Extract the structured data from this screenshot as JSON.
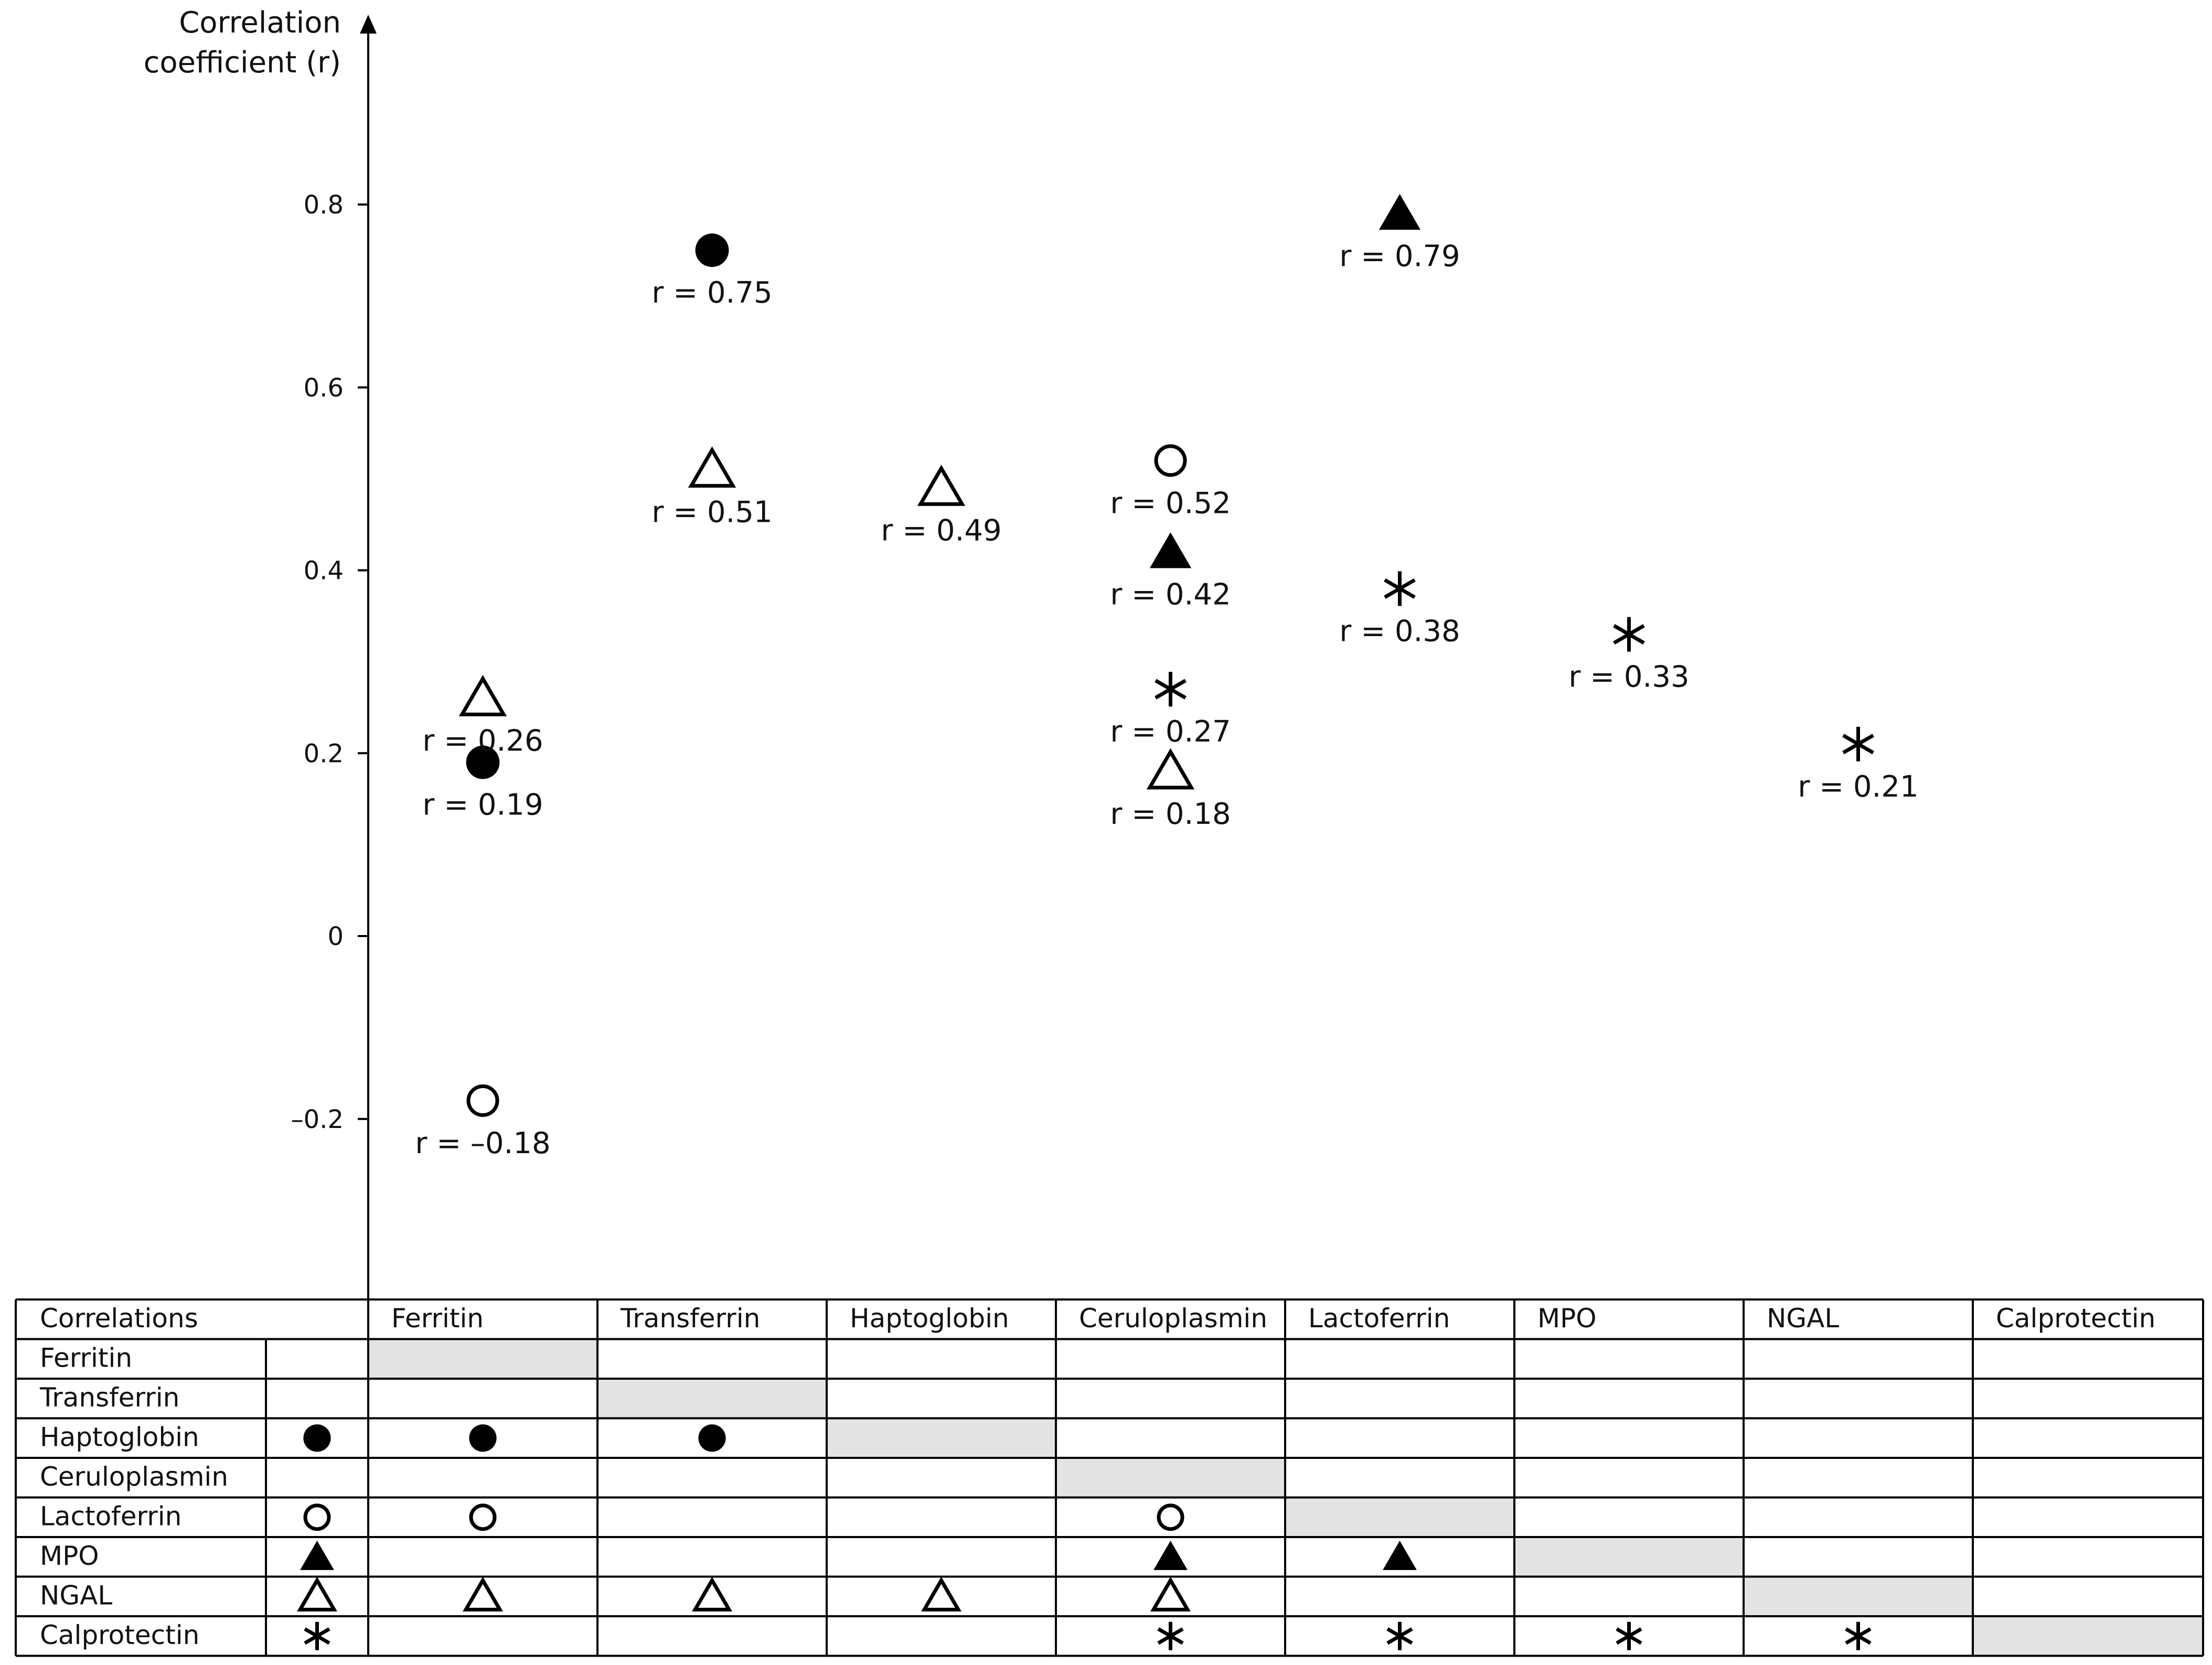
{
  "chart_data": {
    "type": "scatter",
    "ylabel": [
      "Correlation",
      "coefficient (r)"
    ],
    "ylim": [
      -0.4,
      1.0
    ],
    "yticks": [
      {
        "value": 0.8,
        "label": "0.8"
      },
      {
        "value": 0.6,
        "label": "0.6"
      },
      {
        "value": 0.4,
        "label": "0.4"
      },
      {
        "value": 0.2,
        "label": "0.2"
      },
      {
        "value": 0,
        "label": "0"
      },
      {
        "value": -0.2,
        "label": "–0.2"
      }
    ],
    "columns": [
      "Ferritin",
      "Transferrin",
      "Haptoglobin",
      "Ceruloplasmin",
      "Lactoferrin",
      "MPO",
      "NGAL",
      "Calprotectin"
    ],
    "rows": [
      "Ferritin",
      "Transferrin",
      "Haptoglobin",
      "Ceruloplasmin",
      "Lactoferrin",
      "MPO",
      "NGAL",
      "Calprotectin"
    ],
    "series": [
      {
        "name": "Haptoglobin",
        "marker": "filled-circle",
        "row": 2
      },
      {
        "name": "Lactoferrin",
        "marker": "open-circle",
        "row": 4
      },
      {
        "name": "MPO",
        "marker": "filled-triangle",
        "row": 5
      },
      {
        "name": "NGAL",
        "marker": "open-triangle",
        "row": 6
      },
      {
        "name": "Calprotectin",
        "marker": "asterisk",
        "row": 7
      }
    ],
    "points": [
      {
        "series": "Haptoglobin",
        "column": "Ferritin",
        "col": 0,
        "r": 0.19,
        "label": "r = 0.19"
      },
      {
        "series": "Haptoglobin",
        "column": "Transferrin",
        "col": 1,
        "r": 0.75,
        "label": "r = 0.75"
      },
      {
        "series": "Lactoferrin",
        "column": "Ferritin",
        "col": 0,
        "r": -0.18,
        "label": "r = –0.18"
      },
      {
        "series": "Lactoferrin",
        "column": "Ceruloplasmin",
        "col": 3,
        "r": 0.52,
        "label": "r = 0.52"
      },
      {
        "series": "MPO",
        "column": "Ceruloplasmin",
        "col": 3,
        "r": 0.42,
        "label": "r = 0.42"
      },
      {
        "series": "MPO",
        "column": "Lactoferrin",
        "col": 4,
        "r": 0.79,
        "label": "r = 0.79"
      },
      {
        "series": "NGAL",
        "column": "Ferritin",
        "col": 0,
        "r": 0.26,
        "label": "r = 0.26"
      },
      {
        "series": "NGAL",
        "column": "Transferrin",
        "col": 1,
        "r": 0.51,
        "label": "r = 0.51"
      },
      {
        "series": "NGAL",
        "column": "Haptoglobin",
        "col": 2,
        "r": 0.49,
        "label": "r = 0.49"
      },
      {
        "series": "NGAL",
        "column": "Ceruloplasmin",
        "col": 3,
        "r": 0.18,
        "label": "r = 0.18"
      },
      {
        "series": "Calprotectin",
        "column": "Ceruloplasmin",
        "col": 3,
        "r": 0.27,
        "label": "r = 0.27"
      },
      {
        "series": "Calprotectin",
        "column": "Lactoferrin",
        "col": 4,
        "r": 0.38,
        "label": "r = 0.38"
      },
      {
        "series": "Calprotectin",
        "column": "MPO",
        "col": 5,
        "r": 0.33,
        "label": "r = 0.33"
      },
      {
        "series": "Calprotectin",
        "column": "NGAL",
        "col": 6,
        "r": 0.21,
        "label": "r = 0.21"
      }
    ],
    "table": {
      "header": "Correlations",
      "diagonal_color": "#e3e3e3"
    }
  }
}
